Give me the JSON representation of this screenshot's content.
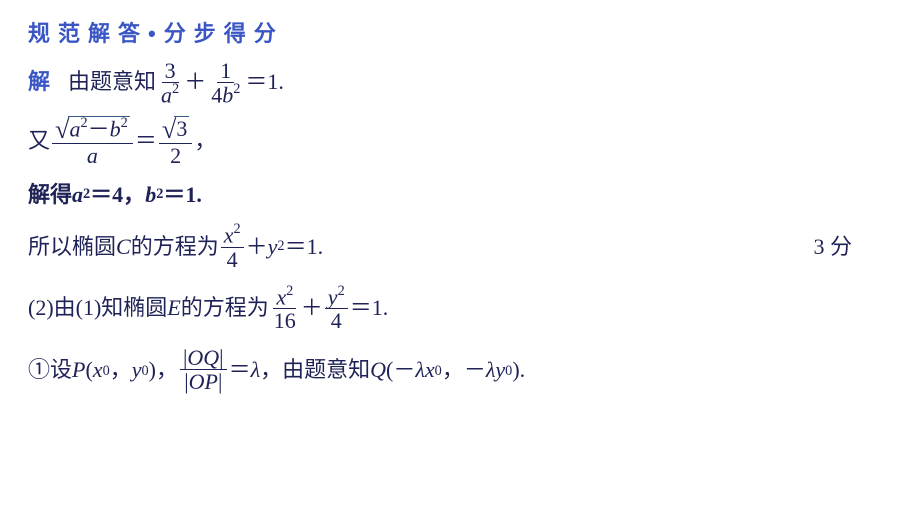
{
  "colors": {
    "heading": "#3a56c4",
    "body": "#1e2256",
    "bg": "#ffffff"
  },
  "title": "规范解答•分步得分",
  "line1": {
    "jie": "解",
    "pre": "由题意知",
    "f1n": "3",
    "f1d_a": "a",
    "f1d_sup": "2",
    "plus": "＋",
    "f2n": "1",
    "f2d_4": "4",
    "f2d_b": "b",
    "f2d_sup": "2",
    "eq": "＝1."
  },
  "line2": {
    "you": "又",
    "sqrt_a": "a",
    "sqrt_sup1": "2",
    "minus": "－",
    "sqrt_b": "b",
    "sqrt_sup2": "2",
    "den_a": "a",
    "eq": "＝",
    "r_n": "3",
    "r_d": "2",
    "comma": "，"
  },
  "line3": {
    "pre": "解得",
    "a": "a",
    "sup": "2",
    "eq1": "＝4，",
    "b": "b",
    "sup2": "2",
    "eq2": "＝1."
  },
  "line4": {
    "pre": "所以椭圆 ",
    "C": "C",
    "mid": " 的方程为",
    "xn": "x",
    "xs": "2",
    "xd": "4",
    "plus": "＋",
    "y": "y",
    "ys": "2",
    "eq": "＝1.",
    "score": "3 分"
  },
  "line5": {
    "pre": "(2)由(1)知椭圆 ",
    "E": "E",
    "mid": " 的方程为",
    "xn": "x",
    "xs": "2",
    "xd": "16",
    "plus": "＋",
    "yn": "y",
    "ysup": "2",
    "yd": "4",
    "eq": "＝1."
  },
  "line6": {
    "a": "①设 ",
    "P": "P",
    "lp": "(",
    "x": "x",
    "z0a": "0",
    "c1": "，",
    "y": "y",
    "z0b": "0",
    "rp": ")，",
    "OQ": "OQ",
    "OP": "OP",
    "eq": "＝",
    "lam": "λ",
    "c2": "，",
    "mid": "由题意知 ",
    "Q": "Q",
    "lp2": "(－",
    "lam2": "λ",
    "x2": "x",
    "z0c": "0",
    "c3": "，",
    "neg": "－",
    "lam3": "λ",
    "y2": "y",
    "z0d": "0",
    "rp2": ")."
  }
}
